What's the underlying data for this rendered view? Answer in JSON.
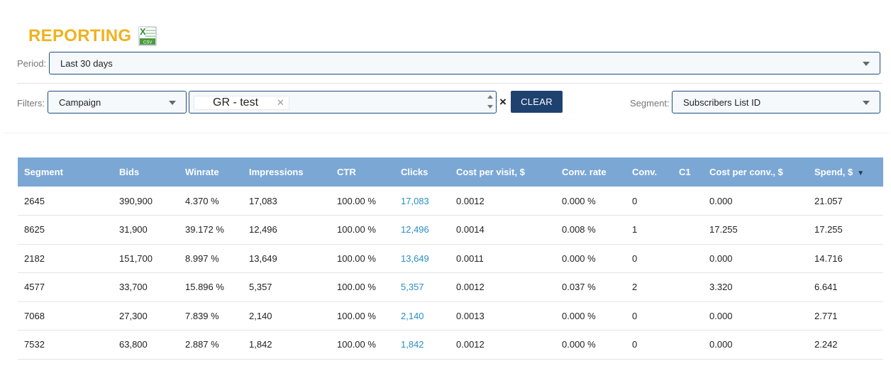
{
  "header": {
    "title": "REPORTING",
    "export_icon": "excel-csv-icon"
  },
  "period": {
    "label": "Period:",
    "value": "Last 30 days"
  },
  "filters": {
    "label": "Filters:",
    "type_value": "Campaign",
    "tags": [
      "GR - test"
    ],
    "clear_label": "CLEAR",
    "clear_x": "×"
  },
  "segment": {
    "label": "Segment:",
    "value": "Subscribers List ID"
  },
  "table": {
    "columns": [
      "Segment",
      "Bids",
      "Winrate",
      "Impressions",
      "CTR",
      "Clicks",
      "Cost per visit, $",
      "Conv. rate",
      "Conv.",
      "C1",
      "Cost per conv., $",
      "Spend, $"
    ],
    "sort_indicator": "▼",
    "rows": [
      [
        "2645",
        "390,900",
        "4.370 %",
        "17,083",
        "100.00 %",
        "17,083",
        "0.0012",
        "0.000 %",
        "0",
        "",
        "0.000",
        "21.057"
      ],
      [
        "8625",
        "31,900",
        "39.172 %",
        "12,496",
        "100.00 %",
        "12,496",
        "0.0014",
        "0.008 %",
        "1",
        "",
        "17.255",
        "17.255"
      ],
      [
        "2182",
        "151,700",
        "8.997 %",
        "13,649",
        "100.00 %",
        "13,649",
        "0.0011",
        "0.000 %",
        "0",
        "",
        "0.000",
        "14.716"
      ],
      [
        "4577",
        "33,700",
        "15.896 %",
        "5,357",
        "100.00 %",
        "5,357",
        "0.0012",
        "0.037 %",
        "2",
        "",
        "3.320",
        "6.641"
      ],
      [
        "7068",
        "27,300",
        "7.839 %",
        "2,140",
        "100.00 %",
        "2,140",
        "0.0013",
        "0.000 %",
        "0",
        "",
        "0.000",
        "2.771"
      ],
      [
        "7532",
        "63,800",
        "2.887 %",
        "1,842",
        "100.00 %",
        "1,842",
        "0.0012",
        "0.000 %",
        "0",
        "",
        "0.000",
        "2.242"
      ]
    ]
  }
}
